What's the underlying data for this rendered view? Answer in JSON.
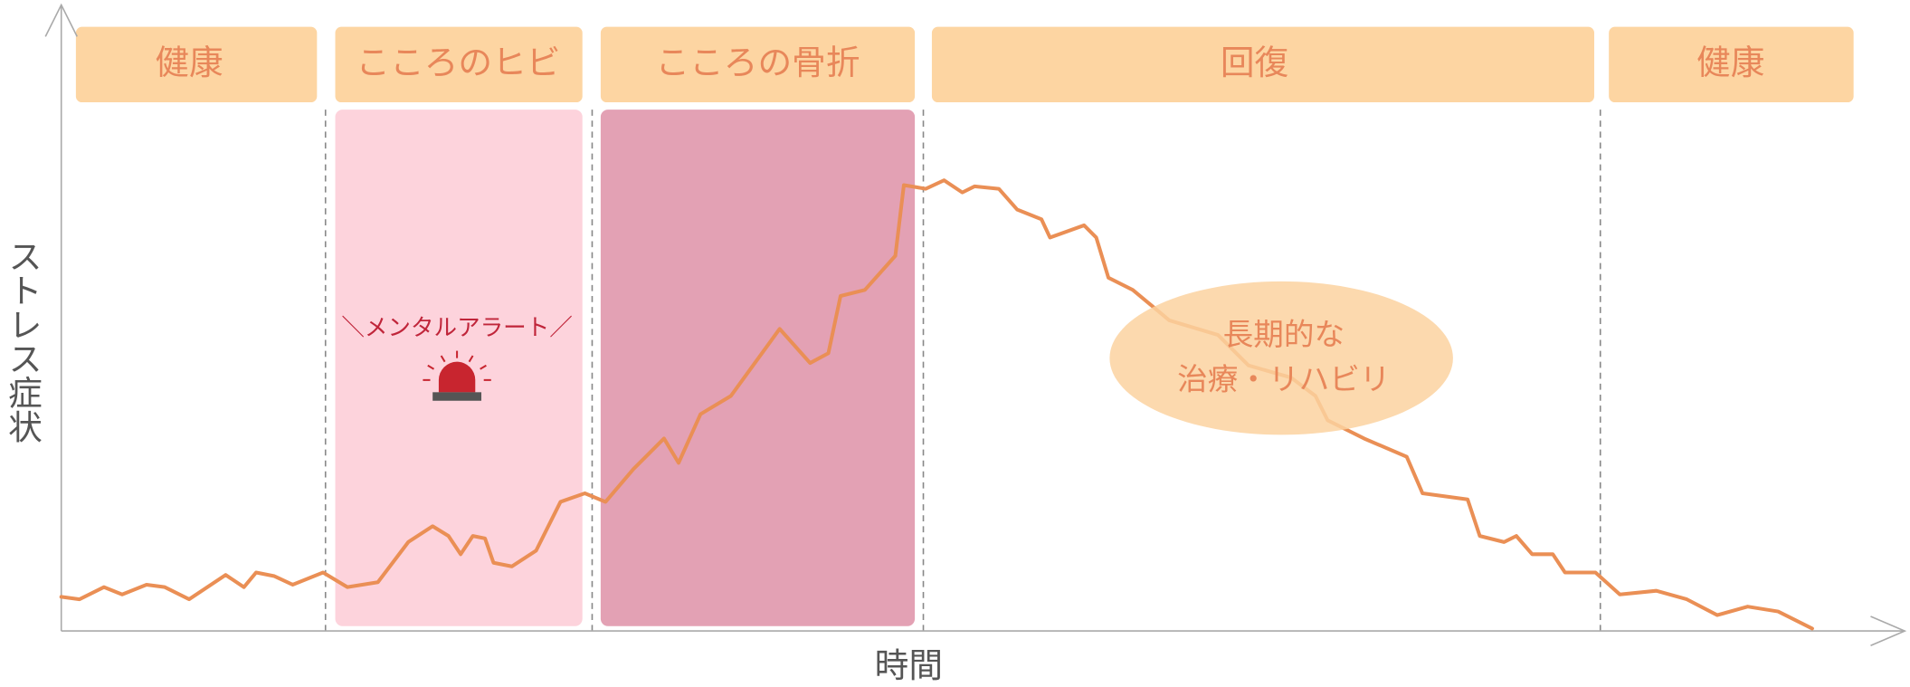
{
  "phases": [
    {
      "label": "健康"
    },
    {
      "label": "こころのヒビ"
    },
    {
      "label": "こころの骨折"
    },
    {
      "label": "回復"
    },
    {
      "label": "健康"
    }
  ],
  "alert": {
    "label": "＼メンタルアラート／"
  },
  "callout": {
    "lines": [
      "長期的な",
      "治療・リハビリ"
    ]
  },
  "axes": {
    "y_label": "ストレス症状",
    "x_label": "時間"
  }
}
